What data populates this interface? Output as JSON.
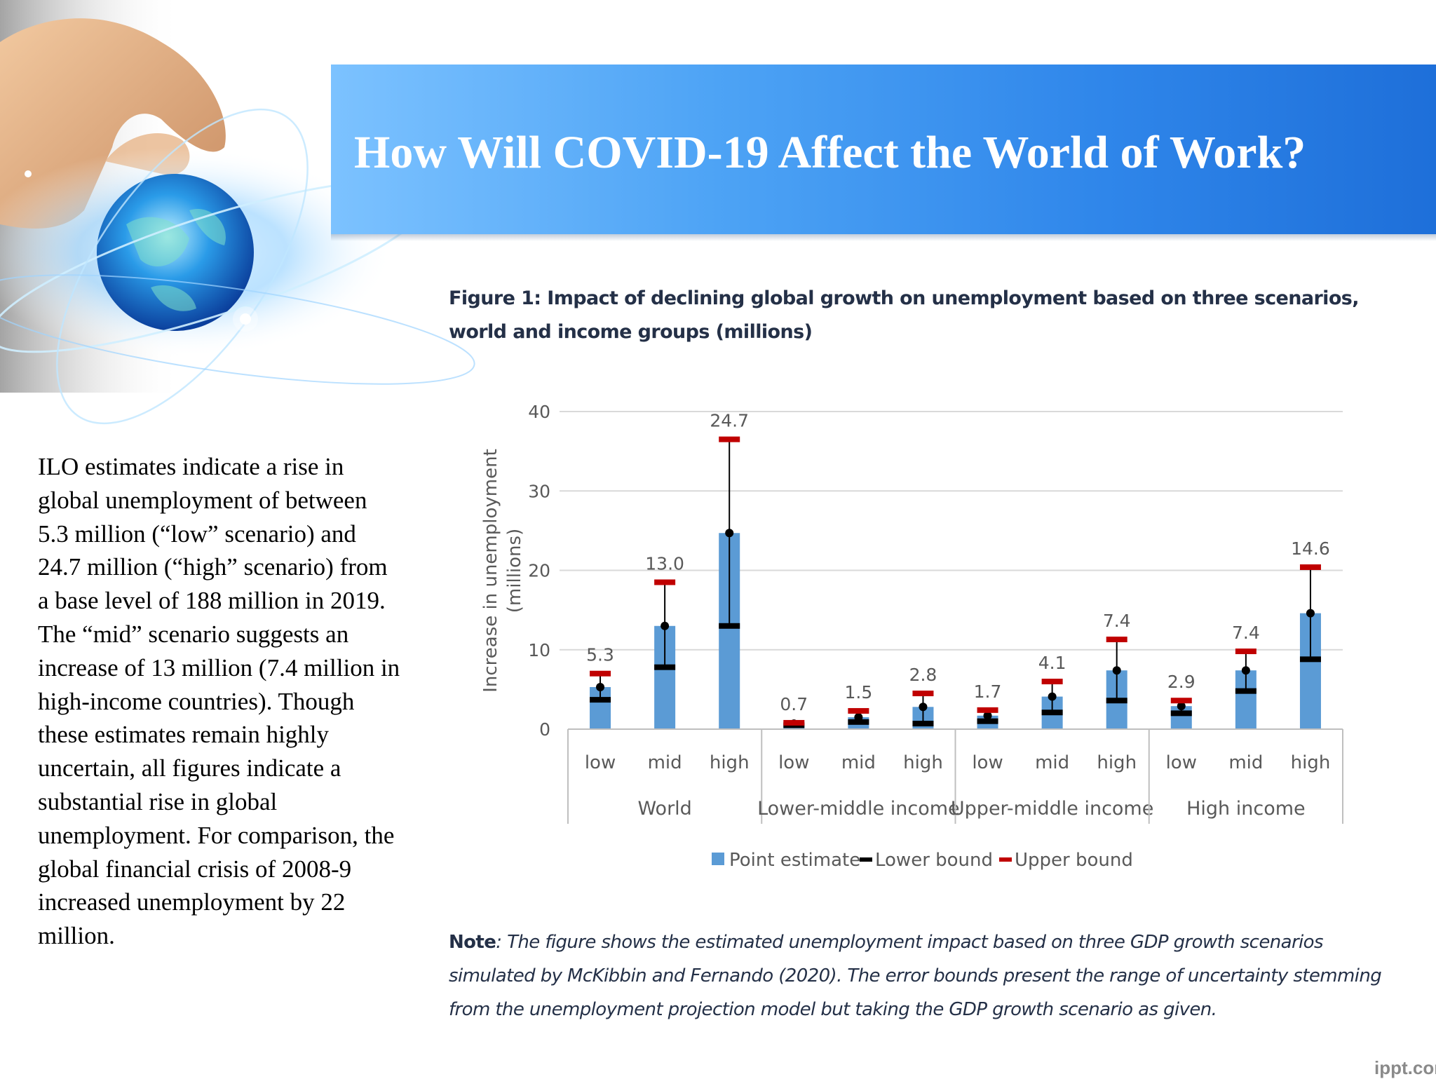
{
  "slide": {
    "title": "How Will COVID-19 Affect the World of Work?",
    "body": "ILO estimates indicate a rise in global unemployment of between 5.3 million (“low” scenario) and 24.7 million (“high” scenario) from a base level of 188 million in 2019. The “mid” scenario suggests an increase of 13 million (7.4 million in high-income countries). Though these estimates remain highly uncertain, all figures indicate a substantial rise in global unemployment. For comparison, the global financial crisis of 2008-9 increased unemployment by 22 million.",
    "watermark": "ippt.com"
  },
  "figure": {
    "title": "Figure 1: Impact of declining global growth on unemployment based on three scenarios, world and income groups (millions)",
    "note_label": "Note",
    "note_text": ": The figure shows the estimated unemployment impact based on three GDP growth scenarios simulated by McKibbin and Fernando (2020). The error bounds present the range of uncertainty stemming from the unemployment projection model but taking the GDP growth scenario as given."
  },
  "colors": {
    "bar": "#5b9bd5",
    "lower": "#000000",
    "upper": "#c00000",
    "banner": "#2f86ea"
  },
  "chart_data": {
    "type": "bar",
    "ylabel": "Increase in unemployment (millions)",
    "ylim": [
      0,
      40
    ],
    "yticks": [
      0,
      10,
      20,
      30,
      40
    ],
    "grid": true,
    "legend_position": "bottom",
    "groups": [
      {
        "name": "World",
        "categories": [
          "low",
          "mid",
          "high"
        ],
        "point": [
          5.3,
          13.0,
          24.7
        ],
        "lower": [
          3.7,
          7.8,
          13.0
        ],
        "upper": [
          7.0,
          18.5,
          36.5
        ]
      },
      {
        "name": "Lower-middle income",
        "categories": [
          "low",
          "mid",
          "high"
        ],
        "point": [
          0.7,
          1.5,
          2.8
        ],
        "lower": [
          0.5,
          0.9,
          0.7
        ],
        "upper": [
          0.8,
          2.3,
          4.5
        ]
      },
      {
        "name": "Upper-middle income",
        "categories": [
          "low",
          "mid",
          "high"
        ],
        "point": [
          1.7,
          4.1,
          7.4
        ],
        "lower": [
          1.0,
          2.1,
          3.6
        ],
        "upper": [
          2.4,
          6.0,
          11.3
        ]
      },
      {
        "name": "High income",
        "categories": [
          "low",
          "mid",
          "high"
        ],
        "point": [
          2.9,
          7.4,
          14.6
        ],
        "lower": [
          2.0,
          4.8,
          8.8
        ],
        "upper": [
          3.6,
          9.8,
          20.4
        ]
      }
    ],
    "data_labels": [
      "5.3",
      "13.0",
      "24.7",
      "0.7",
      "1.5",
      "2.8",
      "1.7",
      "4.1",
      "7.4",
      "2.9",
      "7.4",
      "14.6"
    ],
    "legend": [
      "Point estimate",
      "Lower bound",
      "Upper bound"
    ]
  }
}
